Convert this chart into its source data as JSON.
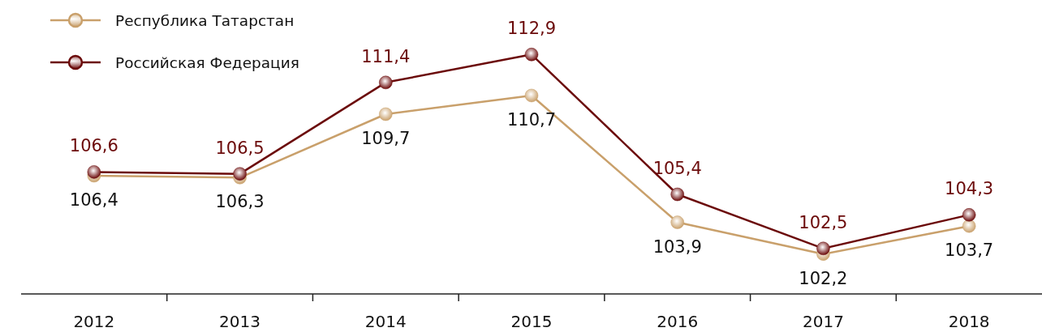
{
  "chart_data": {
    "type": "line",
    "categories": [
      "2012",
      "2013",
      "2014",
      "2015",
      "2016",
      "2017",
      "2018"
    ],
    "series": [
      {
        "name": "Республика Татарстан",
        "color": "#c9a06b",
        "values": [
          106.4,
          106.3,
          109.7,
          110.7,
          103.9,
          102.2,
          103.7
        ],
        "value_labels": [
          "106,4",
          "106,3",
          "109,7",
          "110,7",
          "103,9",
          "102,2",
          "103,7"
        ]
      },
      {
        "name": "Российская Федерация",
        "color": "#6b0a0a",
        "values": [
          106.6,
          106.5,
          111.4,
          112.9,
          105.4,
          102.5,
          104.3
        ],
        "value_labels": [
          "106,6",
          "106,5",
          "111,4",
          "112,9",
          "105,4",
          "102,5",
          "104,3"
        ]
      }
    ],
    "tick_labels": "x",
    "legend": "top left",
    "marker": "circle",
    "line_style": "solid"
  }
}
